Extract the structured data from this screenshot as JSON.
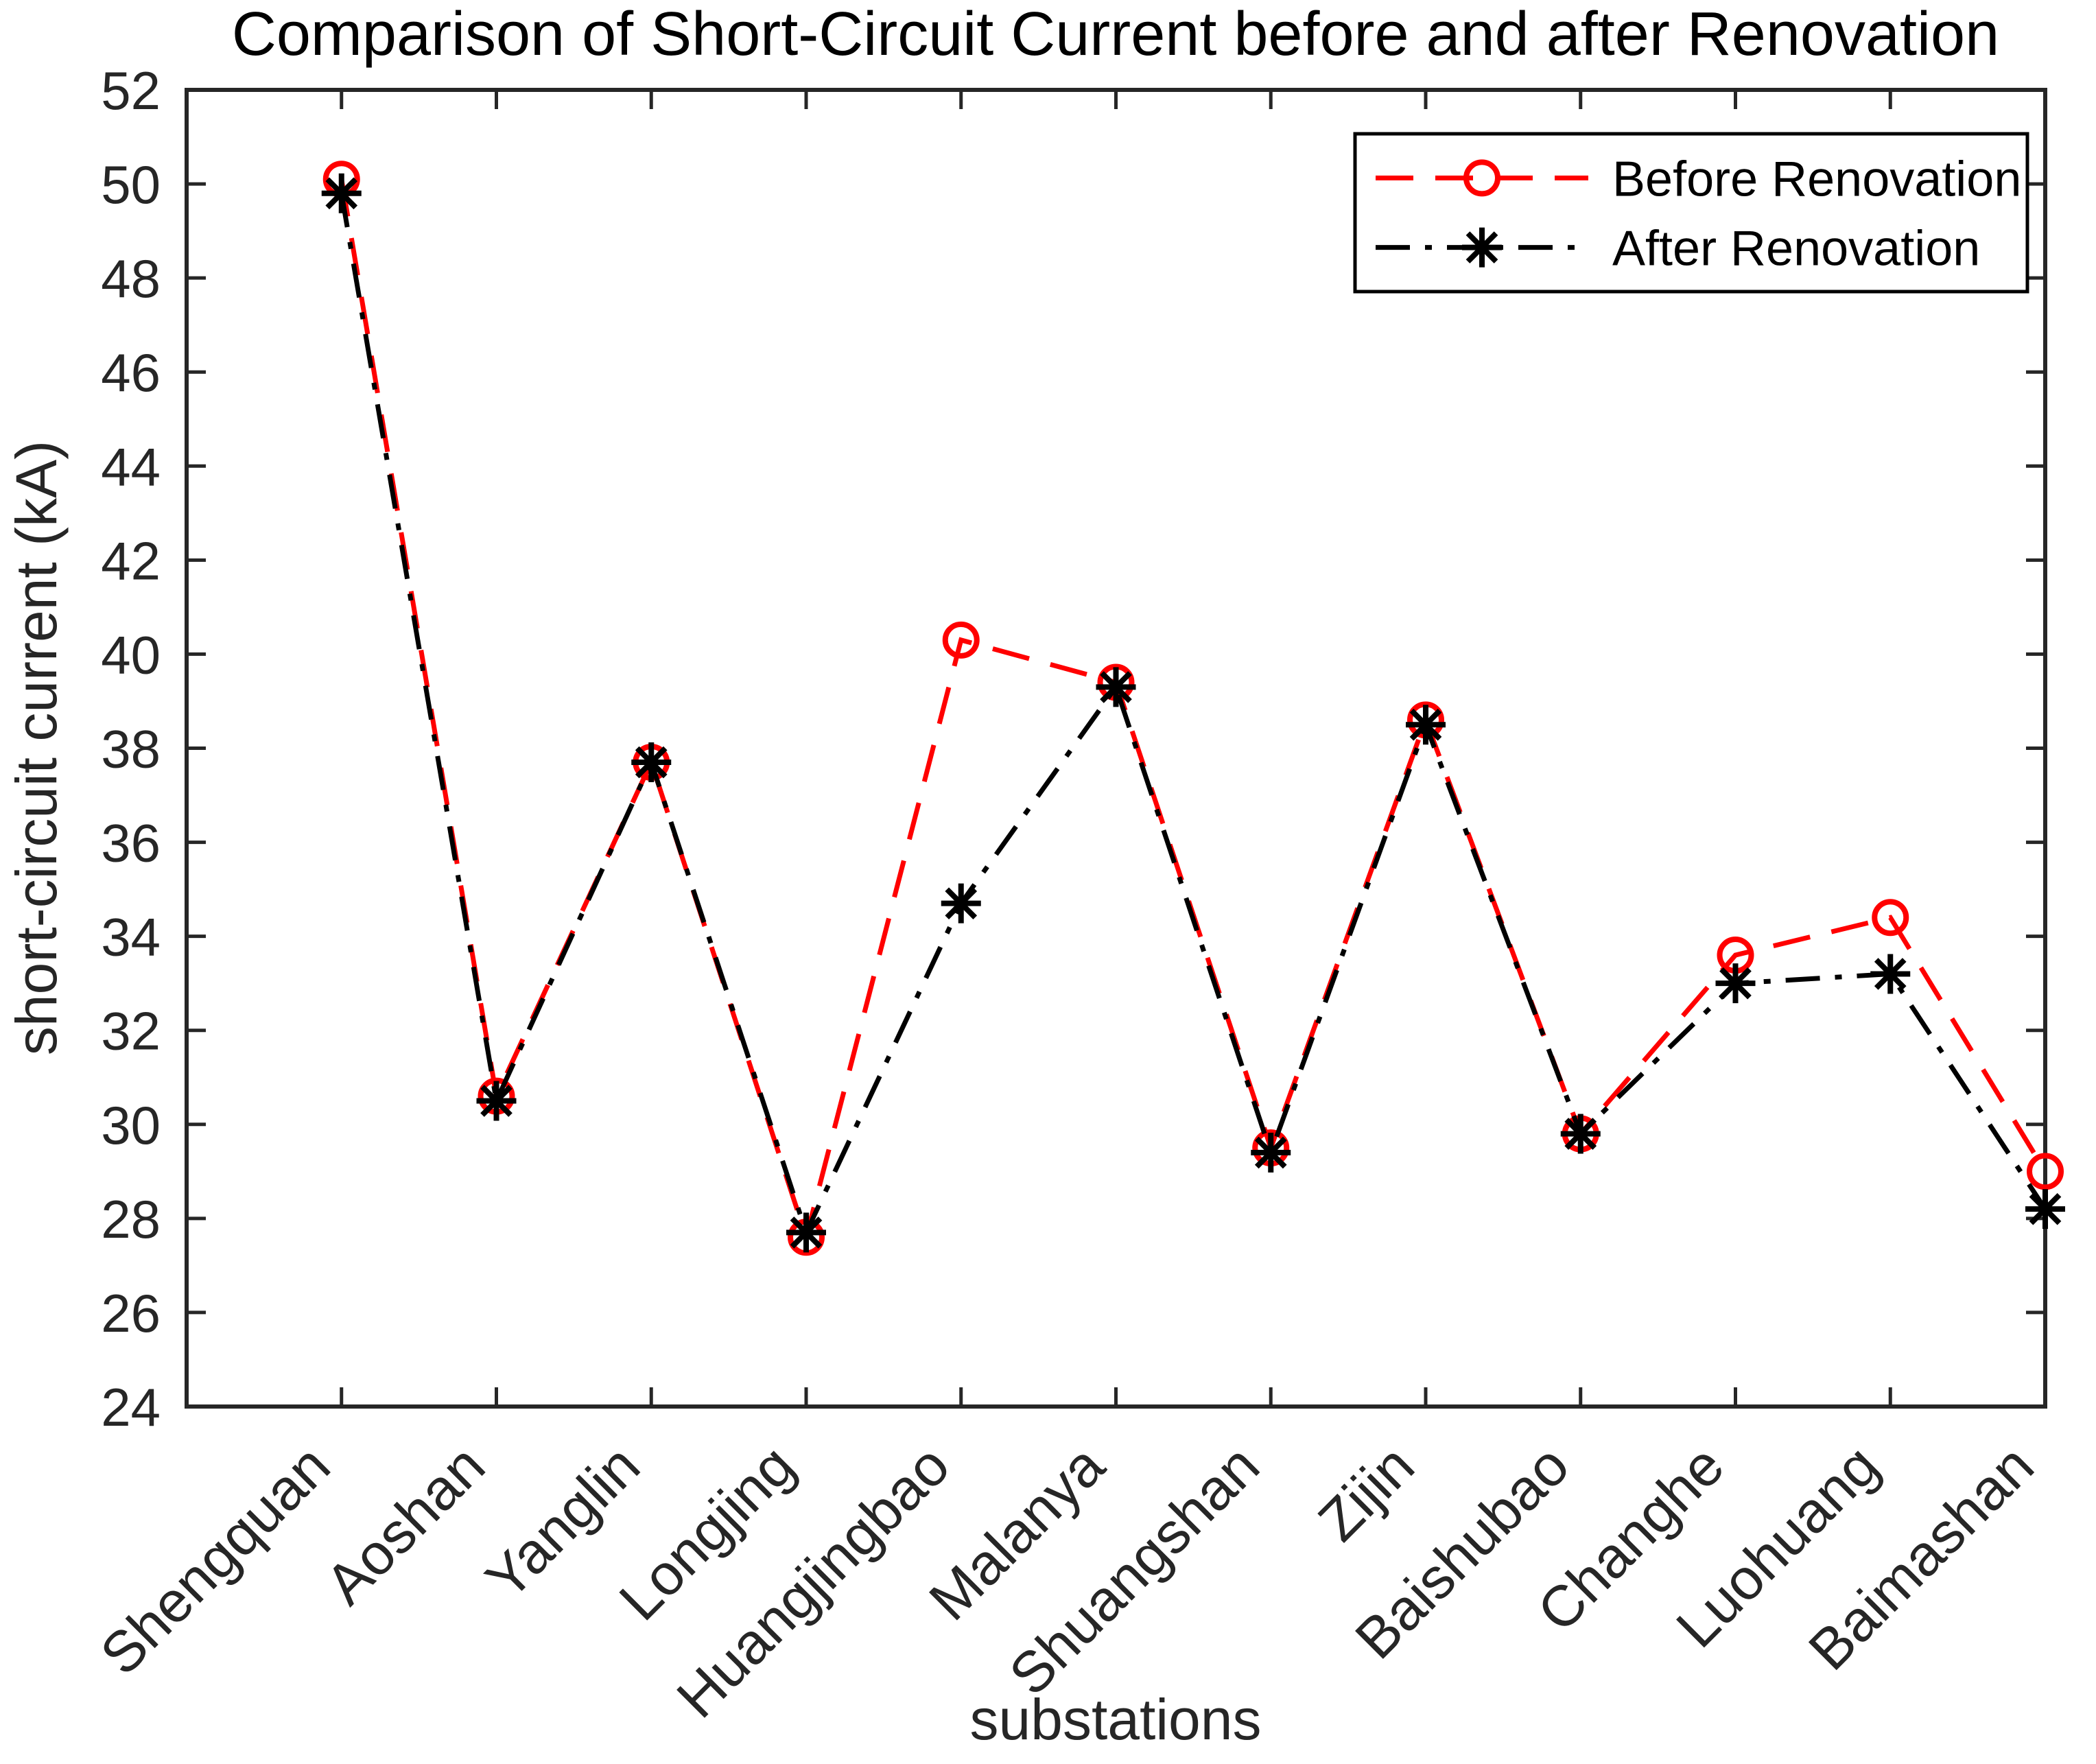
{
  "figure": {
    "background": "#ffffff"
  },
  "chart_data": {
    "type": "line",
    "title": "Comparison of Short-Circuit Current before and after Renovation",
    "xlabel": "substations",
    "ylabel": "short-circuit current (kA)",
    "categories": [
      "Shengquan",
      "Aoshan",
      "Yanglin",
      "Longjing",
      "Huangjingbao",
      "Malanya",
      "Shuangshan",
      "Zijin",
      "Baishubao",
      "Changhe",
      "Luohuang",
      "Baimashan"
    ],
    "series": [
      {
        "name": "Before Renovation",
        "color": "#ff0000",
        "line_style": "dashed",
        "marker": "circle",
        "values": [
          50.1,
          30.6,
          37.7,
          27.6,
          40.3,
          39.4,
          29.5,
          38.6,
          29.8,
          33.6,
          34.4,
          29.0
        ]
      },
      {
        "name": "After Renovation",
        "color": "#000000",
        "line_style": "dash-dot",
        "marker": "asterisk",
        "values": [
          49.8,
          30.5,
          37.7,
          27.7,
          34.7,
          39.3,
          29.4,
          38.5,
          29.8,
          33.0,
          33.2,
          28.2
        ]
      }
    ],
    "ylim": [
      24,
      52
    ],
    "yticks": [
      24,
      26,
      28,
      30,
      32,
      34,
      36,
      38,
      40,
      42,
      44,
      46,
      48,
      50,
      52
    ],
    "grid": false,
    "legend_position": "top-right"
  },
  "colors": {
    "axis": "#262626",
    "text": "#000000",
    "legend_border": "#000000",
    "background": "#ffffff"
  }
}
